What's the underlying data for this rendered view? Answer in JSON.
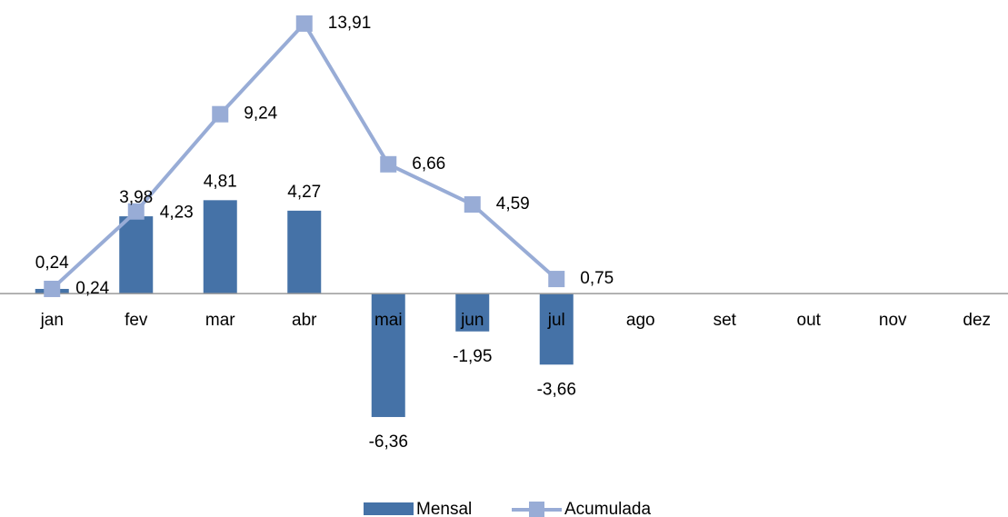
{
  "chart_data": {
    "type": "bar_line",
    "categories": [
      "jan",
      "fev",
      "mar",
      "abr",
      "mai",
      "jun",
      "jul",
      "ago",
      "set",
      "out",
      "nov",
      "dez"
    ],
    "series": [
      {
        "name": "Mensal",
        "type": "bar",
        "color": "#4572a7",
        "values": [
          0.24,
          3.98,
          4.81,
          4.27,
          -6.36,
          -1.95,
          -3.66,
          null,
          null,
          null,
          null,
          null
        ],
        "value_labels": [
          "0,24",
          "3,98",
          "4,81",
          "4,27",
          "-6,36",
          "-1,95",
          "-3,66",
          null,
          null,
          null,
          null,
          null
        ]
      },
      {
        "name": "Acumulada",
        "type": "line",
        "color": "#98acd6",
        "values": [
          0.24,
          4.23,
          9.24,
          13.91,
          6.66,
          4.59,
          0.75,
          null,
          null,
          null,
          null,
          null
        ],
        "value_labels": [
          "0,24",
          "4,23",
          "9,24",
          "13,91",
          "6,66",
          "4,59",
          "0,75",
          null,
          null,
          null,
          null,
          null
        ]
      }
    ],
    "ylim": [
      -8,
      14
    ],
    "legend": "bottom"
  }
}
